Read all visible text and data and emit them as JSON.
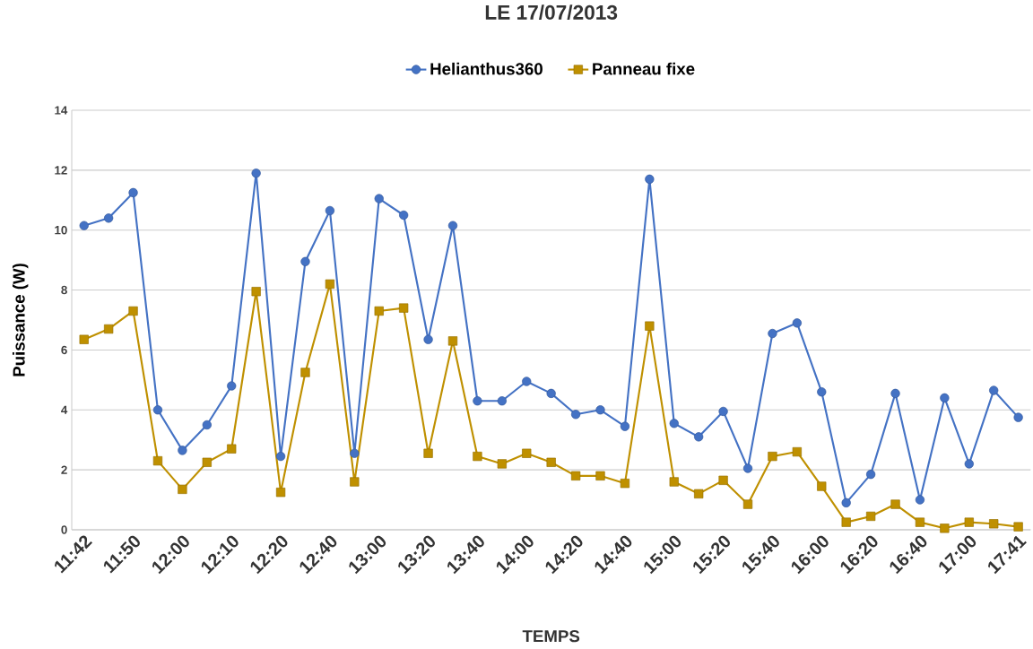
{
  "chart_data": {
    "type": "line",
    "title": "LE 17/07/2013",
    "xlabel": "TEMPS",
    "ylabel": "Puissance (W)",
    "categories": [
      "11:42",
      null,
      "11:50",
      null,
      "12:00",
      null,
      "12:10",
      null,
      "12:20",
      null,
      "12:40",
      null,
      "13:00",
      null,
      "13:20",
      null,
      "13:40",
      null,
      "14:00",
      null,
      "14:20",
      null,
      "14:40",
      null,
      "15:00",
      null,
      "15:20",
      null,
      "15:40",
      null,
      "16:00",
      null,
      "16:20",
      null,
      "16:40",
      null,
      "17:00",
      null,
      "17:41"
    ],
    "series": [
      {
        "name": "Helianthus360",
        "color": "#4472c4",
        "marker": "circle",
        "values": [
          10.15,
          10.4,
          11.25,
          4.0,
          2.65,
          3.5,
          4.8,
          11.9,
          2.45,
          8.95,
          10.65,
          2.55,
          11.05,
          10.5,
          6.35,
          10.15,
          4.3,
          4.3,
          4.95,
          4.55,
          3.85,
          4.0,
          3.45,
          11.7,
          3.55,
          3.1,
          3.95,
          2.05,
          6.55,
          6.9,
          4.6,
          0.9,
          1.85,
          4.55,
          1.0,
          4.4,
          2.2,
          4.65,
          3.75
        ]
      },
      {
        "name": "Panneau fixe",
        "color": "#bf9000",
        "marker": "square",
        "values": [
          6.35,
          6.7,
          7.3,
          2.3,
          1.35,
          2.25,
          2.7,
          7.95,
          1.25,
          5.25,
          8.2,
          1.6,
          7.3,
          7.4,
          2.55,
          6.3,
          2.45,
          2.2,
          2.55,
          2.25,
          1.8,
          1.8,
          1.55,
          6.8,
          1.6,
          1.2,
          1.65,
          0.85,
          2.45,
          2.6,
          1.45,
          0.25,
          0.45,
          0.85,
          0.25,
          0.05,
          0.25,
          0.2,
          0.1
        ]
      }
    ],
    "ylim": [
      0,
      14
    ],
    "yticks": [
      0,
      2,
      4,
      6,
      8,
      10,
      12,
      14
    ],
    "grid": "y",
    "legend": "top",
    "line_style": "solid"
  }
}
